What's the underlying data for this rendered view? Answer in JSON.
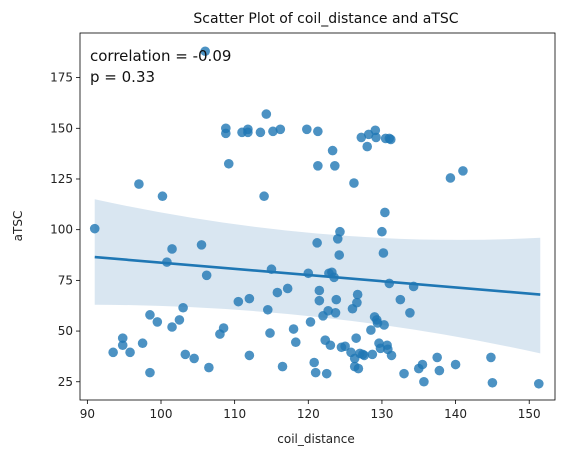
{
  "chart_data": {
    "type": "scatter",
    "title": "Scatter Plot of coil_distance and aTSC",
    "xlabel": "coil_distance",
    "ylabel": "aTSC",
    "xlim": [
      89,
      153.5
    ],
    "ylim": [
      16,
      197
    ],
    "xticks": [
      90,
      100,
      110,
      120,
      130,
      140,
      150
    ],
    "yticks": [
      25,
      50,
      75,
      100,
      125,
      150,
      175
    ],
    "grid": false,
    "annotations": [
      "correlation = -0.09",
      "p = 0.33"
    ],
    "regression": {
      "x": [
        91,
        151.5
      ],
      "y": [
        86.5,
        68
      ],
      "ci_upper": [
        115,
        96
      ],
      "ci_lower": [
        63,
        39
      ],
      "ci_mid_upper": [
        81.5
      ],
      "ci_mid_lower": [
        71.5
      ],
      "ci_mid_x": [
        122
      ]
    },
    "colors": {
      "points": "#1f77b4",
      "line": "#1f77b4",
      "band": "#cfe0ee"
    },
    "points": [
      [
        91,
        100.5
      ],
      [
        93.5,
        39.5
      ],
      [
        94.8,
        46.5
      ],
      [
        94.8,
        43
      ],
      [
        95.8,
        39.5
      ],
      [
        97,
        122.5
      ],
      [
        97.5,
        44
      ],
      [
        98.5,
        58
      ],
      [
        98.5,
        29.5
      ],
      [
        99.5,
        54.5
      ],
      [
        100.2,
        116.5
      ],
      [
        100.8,
        84
      ],
      [
        101.5,
        90.5
      ],
      [
        101.5,
        52
      ],
      [
        102.5,
        55.5
      ],
      [
        103,
        61.5
      ],
      [
        103.3,
        38.5
      ],
      [
        104.5,
        36.5
      ],
      [
        105.5,
        92.5
      ],
      [
        106,
        188
      ],
      [
        106.2,
        77.5
      ],
      [
        106.5,
        32
      ],
      [
        108,
        48.5
      ],
      [
        108.5,
        51.5
      ],
      [
        108.8,
        150
      ],
      [
        108.8,
        147.5
      ],
      [
        109.2,
        132.5
      ],
      [
        110.5,
        64.5
      ],
      [
        111,
        148
      ],
      [
        111.8,
        149.5
      ],
      [
        111.8,
        148
      ],
      [
        112,
        66
      ],
      [
        112,
        38
      ],
      [
        113.5,
        148
      ],
      [
        114,
        116.5
      ],
      [
        114.3,
        157
      ],
      [
        114.5,
        60.5
      ],
      [
        114.8,
        49
      ],
      [
        115,
        80.5
      ],
      [
        115.2,
        148.5
      ],
      [
        115.8,
        69
      ],
      [
        116.2,
        149.5
      ],
      [
        116.5,
        32.5
      ],
      [
        117.2,
        71
      ],
      [
        118,
        51
      ],
      [
        118.3,
        44.5
      ],
      [
        119.8,
        149.5
      ],
      [
        120,
        78.5
      ],
      [
        120.3,
        54.5
      ],
      [
        120.8,
        34.5
      ],
      [
        121,
        29.5
      ],
      [
        121.2,
        93.5
      ],
      [
        121.3,
        148.5
      ],
      [
        121.3,
        131.5
      ],
      [
        121.5,
        65
      ],
      [
        121.5,
        70
      ],
      [
        122,
        57.5
      ],
      [
        122.3,
        45.5
      ],
      [
        122.5,
        29
      ],
      [
        122.7,
        60
      ],
      [
        122.8,
        78.5
      ],
      [
        123,
        43
      ],
      [
        123.2,
        79
      ],
      [
        123.3,
        139
      ],
      [
        123.5,
        76.5
      ],
      [
        123.6,
        131.5
      ],
      [
        123.7,
        59
      ],
      [
        123.8,
        65.5
      ],
      [
        124,
        95.5
      ],
      [
        124.2,
        87.5
      ],
      [
        124.3,
        99
      ],
      [
        124.5,
        42
      ],
      [
        125,
        42.5
      ],
      [
        125.8,
        39.5
      ],
      [
        126,
        61
      ],
      [
        126.2,
        123
      ],
      [
        126.3,
        32.5
      ],
      [
        126.3,
        36.5
      ],
      [
        126.5,
        46.5
      ],
      [
        126.6,
        64
      ],
      [
        126.7,
        68
      ],
      [
        126.8,
        31.5
      ],
      [
        127,
        39
      ],
      [
        127.2,
        145.5
      ],
      [
        127.4,
        38.5
      ],
      [
        127.6,
        38
      ],
      [
        128,
        141
      ],
      [
        128.2,
        147
      ],
      [
        128.5,
        50.5
      ],
      [
        128.7,
        38.5
      ],
      [
        129,
        57
      ],
      [
        129.1,
        149
      ],
      [
        129.2,
        145.5
      ],
      [
        129.3,
        55.5
      ],
      [
        129.4,
        54
      ],
      [
        129.6,
        44
      ],
      [
        129.8,
        41.5
      ],
      [
        130,
        99
      ],
      [
        130.2,
        88.5
      ],
      [
        130.3,
        53
      ],
      [
        130.4,
        108.5
      ],
      [
        130.5,
        145
      ],
      [
        130.7,
        43
      ],
      [
        130.8,
        41
      ],
      [
        131,
        73.5
      ],
      [
        131,
        145
      ],
      [
        131.2,
        144.5
      ],
      [
        131.3,
        38
      ],
      [
        132.5,
        65.5
      ],
      [
        133,
        29
      ],
      [
        133.8,
        59
      ],
      [
        134.3,
        72
      ],
      [
        135,
        31.5
      ],
      [
        135.5,
        33.5
      ],
      [
        135.7,
        25
      ],
      [
        137.5,
        37
      ],
      [
        137.8,
        30.5
      ],
      [
        139.3,
        125.5
      ],
      [
        140,
        33.5
      ],
      [
        141,
        129
      ],
      [
        144.8,
        37
      ],
      [
        145,
        24.5
      ],
      [
        151.3,
        24
      ]
    ]
  }
}
